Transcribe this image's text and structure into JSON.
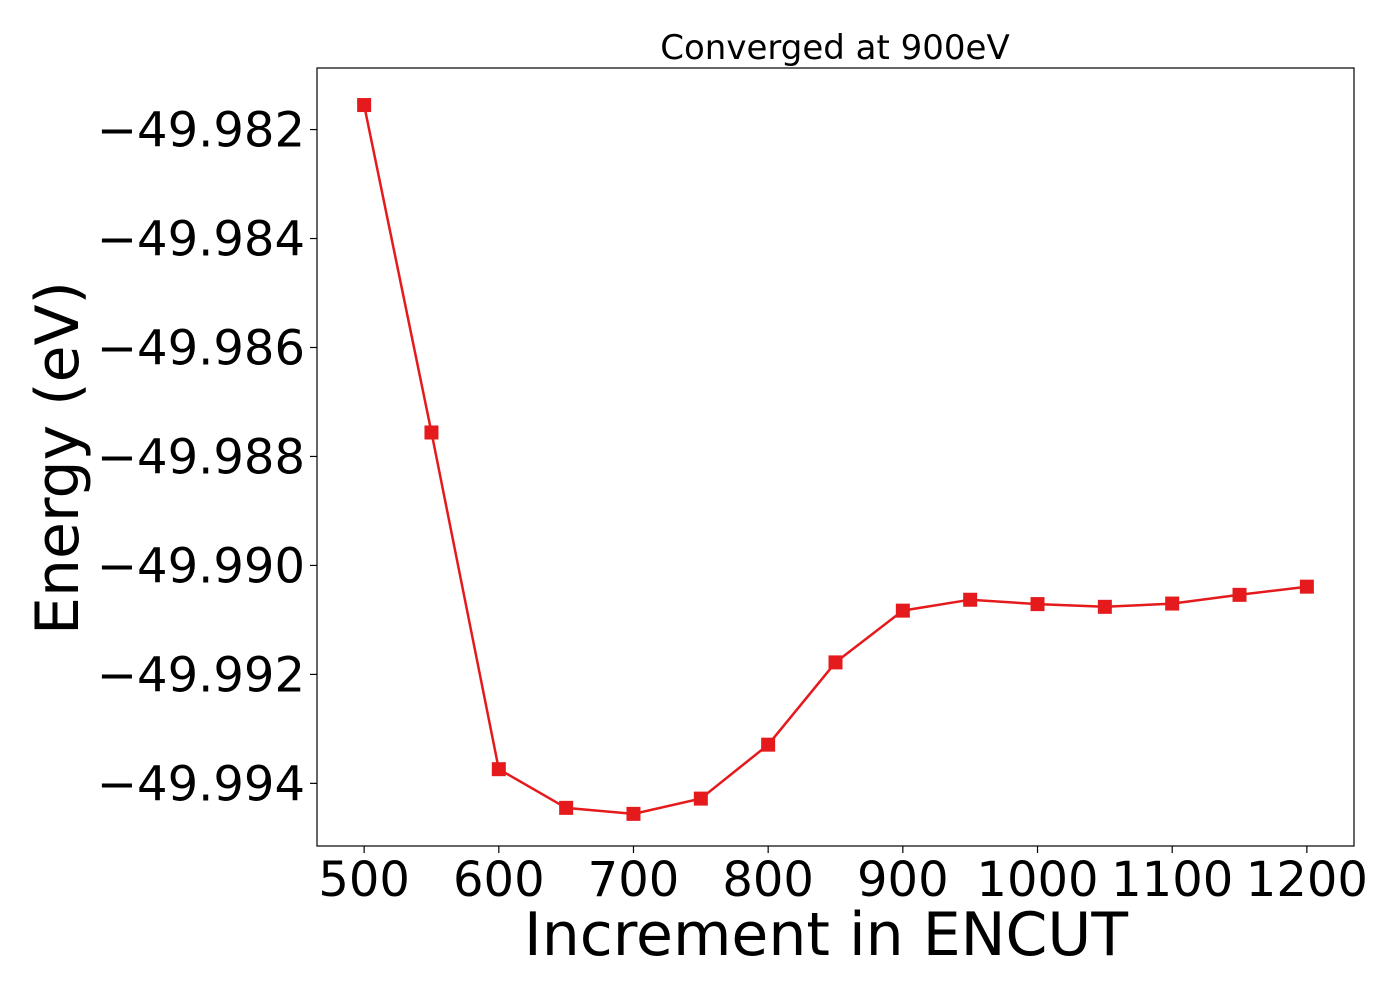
{
  "chart_data": {
    "type": "line",
    "title": "Converged at 900eV",
    "xlabel": "Increment in ENCUT",
    "ylabel": "Energy (eV)",
    "xlim": [
      465,
      1235
    ],
    "ylim": [
      -49.99515,
      -49.98087
    ],
    "x_ticks": [
      500,
      600,
      700,
      800,
      900,
      1000,
      1100,
      1200
    ],
    "x_tick_labels": [
      "500",
      "600",
      "700",
      "800",
      "900",
      "1000",
      "1100",
      "1200"
    ],
    "y_ticks": [
      -49.982,
      -49.984,
      -49.986,
      -49.988,
      -49.99,
      -49.992,
      -49.994
    ],
    "y_tick_labels": [
      "−49.982",
      "−49.984",
      "−49.986",
      "−49.988",
      "−49.990",
      "−49.992",
      "−49.994"
    ],
    "grid": false,
    "series": [
      {
        "color": "#e41a1c",
        "marker": "square",
        "x": [
          500,
          550,
          600,
          650,
          700,
          750,
          800,
          850,
          900,
          950,
          1000,
          1050,
          1100,
          1150,
          1200
        ],
        "y": [
          -49.98155,
          -49.98756,
          -49.99374,
          -49.99445,
          -49.99456,
          -49.99428,
          -49.99329,
          -49.99178,
          -49.99083,
          -49.99063,
          -49.99071,
          -49.99076,
          -49.9907,
          -49.99054,
          -49.99039
        ]
      }
    ]
  }
}
